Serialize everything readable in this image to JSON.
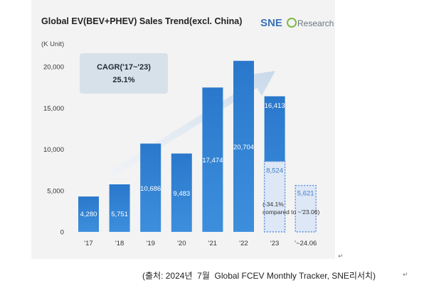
{
  "chart_data": {
    "type": "bar",
    "title": "Global EV(BEV+PHEV) Sales Trend(excl. China)",
    "unit_label": "(K Unit)",
    "categories": [
      "'17",
      "'18",
      "'19",
      "'20",
      "'21",
      "'22",
      "'23",
      "'~24.06"
    ],
    "values": [
      4280,
      5751,
      10686,
      9483,
      17474,
      20704,
      16413,
      5621
    ],
    "value_labels": [
      "4,280",
      "5,751",
      "10,686",
      "9,483",
      "17,474",
      "20,704",
      "16,413",
      "5,621"
    ],
    "partial_2023": {
      "value": 8524,
      "label": "8,524"
    },
    "ylim": [
      0,
      20000
    ],
    "yticks": [
      0,
      5000,
      10000,
      15000,
      20000
    ],
    "ytick_labels": [
      "0",
      "5,000",
      "10,000",
      "15,000",
      "20,000"
    ],
    "grid": false,
    "cagr_box": {
      "line1": "CAGR('17~'23)",
      "line2": "25.1%"
    },
    "annotation": {
      "line1": "(-34.1%",
      "line2": "compared to ~'23.06)"
    },
    "colors": {
      "bar": "#2f7fd1",
      "bar_light": "#dde7f6",
      "outline": "#5b8fd8",
      "label_blue": "#3f7fc8",
      "arrow": "#d6e3f1",
      "cagr_box": "#d7e1ea"
    }
  },
  "logo": {
    "brand": "SNE",
    "text": "Research"
  },
  "caption": "(출처: 2024년  7월  Global FCEV Monthly Tracker, SNE리서치)",
  "return_mark": "↵"
}
